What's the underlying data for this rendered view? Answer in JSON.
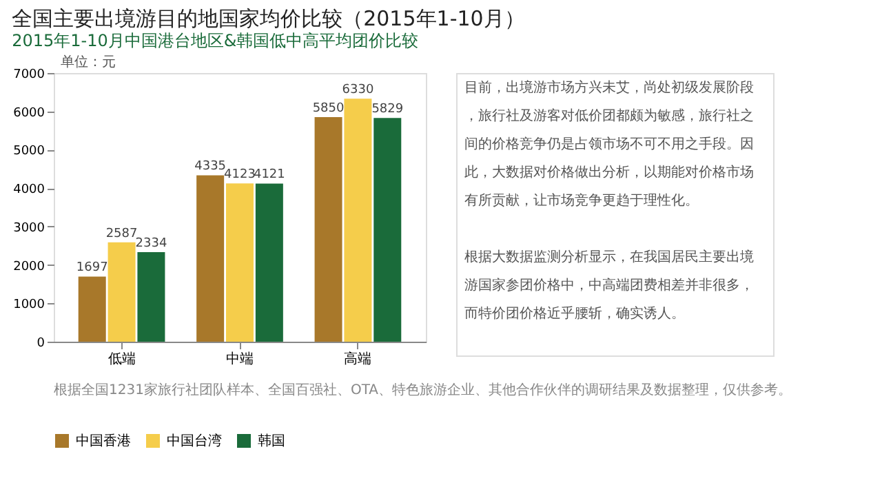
{
  "chart_data": {
    "type": "bar",
    "title": "全国主要出境游目的地国家均价比较（2015年1-10月）",
    "subtitle": "2015年1-10月中国港台地区&韩国低中高平均团价比较",
    "categories": [
      "低端",
      "中端",
      "高端"
    ],
    "series": [
      {
        "name": "中国香港",
        "color": "#a8782a",
        "values": [
          1697,
          4335,
          5850
        ]
      },
      {
        "name": "中国台湾",
        "color": "#f5cd4b",
        "values": [
          2587,
          4123,
          6330
        ]
      },
      {
        "name": "韩国",
        "color": "#1a6b3a",
        "values": [
          2334,
          4121,
          5829
        ]
      }
    ],
    "ylim": [
      0,
      7000
    ],
    "yticks": [
      0,
      1000,
      2000,
      3000,
      4000,
      5000,
      6000,
      7000
    ],
    "data_labels": true,
    "grid": false,
    "legend": "bottom",
    "annotations": [
      "单位：元",
      "目前，出境游市场方兴未艾，尚处初级发展阶段，旅行社及游客对低价团都颇为敏感，旅行社之间的价格竞争仍是占领市场不可不用之手段。因此，大数据对价格做出分析，以期能对价格市场有所贡献，让市场竞争更趋于理性化。",
      "根据大数据监测分析显示，在我国居民主要出境游国家参团价格中，中高端团费相差并非很多，而特价团价格近乎腰斩，确实诱人。",
      "根据全国1231家旅行社团队样本、全国百强社、OTA、特色旅游企业、其他合作伙伴的调研结果及数据整理，仅供参考。"
    ]
  }
}
